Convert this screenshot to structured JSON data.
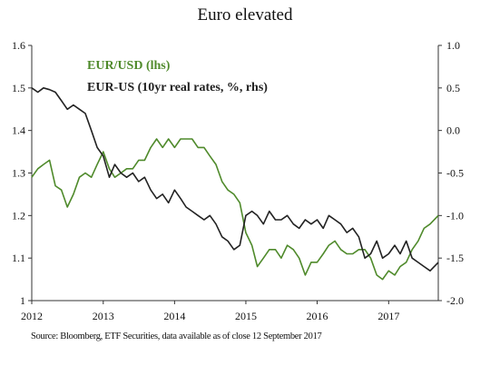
{
  "chart_data": {
    "type": "line",
    "title": "Euro elevated",
    "source": "Source: Bloomberg, ETF Securities, data available as of close 12 September 2017",
    "x_ticks": [
      "2012",
      "2013",
      "2014",
      "2015",
      "2016",
      "2017"
    ],
    "xlim": [
      "2012-01-01",
      "2017-09-12"
    ],
    "left_axis": {
      "ticks": [
        "1",
        "1.1",
        "1.2",
        "1.3",
        "1.4",
        "1.5",
        "1.6"
      ],
      "ylim": [
        1.0,
        1.6
      ]
    },
    "right_axis": {
      "ticks": [
        "-2.0",
        "-1.5",
        "-1.0",
        "-0.5",
        "0.0",
        "0.5",
        "1.0"
      ],
      "ylim": [
        -2.0,
        1.0
      ]
    },
    "legend": [
      {
        "label": "EUR/USD (lhs)",
        "color": "#4f8a2b"
      },
      {
        "label": "EUR-US (10yr real rates, %, rhs)",
        "color": "#222222"
      }
    ],
    "grid": false,
    "series": [
      {
        "name": "EUR/USD (lhs)",
        "axis": "left",
        "color": "#4f8a2b",
        "x": [
          "2012-01-01",
          "2012-02-01",
          "2012-03-01",
          "2012-04-01",
          "2012-05-01",
          "2012-06-01",
          "2012-07-01",
          "2012-08-01",
          "2012-09-01",
          "2012-10-01",
          "2012-11-01",
          "2012-12-01",
          "2013-01-01",
          "2013-02-01",
          "2013-03-01",
          "2013-04-01",
          "2013-05-01",
          "2013-06-01",
          "2013-07-01",
          "2013-08-01",
          "2013-09-01",
          "2013-10-01",
          "2013-11-01",
          "2013-12-01",
          "2014-01-01",
          "2014-02-01",
          "2014-03-01",
          "2014-04-01",
          "2014-05-01",
          "2014-06-01",
          "2014-07-01",
          "2014-08-01",
          "2014-09-01",
          "2014-10-01",
          "2014-11-01",
          "2014-12-01",
          "2015-01-01",
          "2015-02-01",
          "2015-03-01",
          "2015-04-01",
          "2015-05-01",
          "2015-06-01",
          "2015-07-01",
          "2015-08-01",
          "2015-09-01",
          "2015-10-01",
          "2015-11-01",
          "2015-12-01",
          "2016-01-01",
          "2016-02-01",
          "2016-03-01",
          "2016-04-01",
          "2016-05-01",
          "2016-06-01",
          "2016-07-01",
          "2016-08-01",
          "2016-09-01",
          "2016-10-01",
          "2016-11-01",
          "2016-12-01",
          "2017-01-01",
          "2017-02-01",
          "2017-03-01",
          "2017-04-01",
          "2017-05-01",
          "2017-06-01",
          "2017-07-01",
          "2017-08-01",
          "2017-09-12"
        ],
        "values": [
          1.29,
          1.31,
          1.32,
          1.33,
          1.27,
          1.26,
          1.22,
          1.25,
          1.29,
          1.3,
          1.29,
          1.32,
          1.35,
          1.31,
          1.29,
          1.3,
          1.31,
          1.31,
          1.33,
          1.33,
          1.36,
          1.38,
          1.36,
          1.38,
          1.36,
          1.38,
          1.38,
          1.38,
          1.36,
          1.36,
          1.34,
          1.32,
          1.28,
          1.26,
          1.25,
          1.23,
          1.16,
          1.13,
          1.08,
          1.1,
          1.12,
          1.12,
          1.1,
          1.13,
          1.12,
          1.1,
          1.06,
          1.09,
          1.09,
          1.11,
          1.13,
          1.14,
          1.12,
          1.11,
          1.11,
          1.12,
          1.12,
          1.1,
          1.06,
          1.05,
          1.07,
          1.06,
          1.08,
          1.09,
          1.12,
          1.14,
          1.17,
          1.18,
          1.2
        ]
      },
      {
        "name": "EUR-US (10yr real rates, %, rhs)",
        "axis": "right",
        "color": "#222222",
        "x": [
          "2012-01-01",
          "2012-02-01",
          "2012-03-01",
          "2012-04-01",
          "2012-05-01",
          "2012-06-01",
          "2012-07-01",
          "2012-08-01",
          "2012-09-01",
          "2012-10-01",
          "2012-11-01",
          "2012-12-01",
          "2013-01-01",
          "2013-02-01",
          "2013-03-01",
          "2013-04-01",
          "2013-05-01",
          "2013-06-01",
          "2013-07-01",
          "2013-08-01",
          "2013-09-01",
          "2013-10-01",
          "2013-11-01",
          "2013-12-01",
          "2014-01-01",
          "2014-02-01",
          "2014-03-01",
          "2014-04-01",
          "2014-05-01",
          "2014-06-01",
          "2014-07-01",
          "2014-08-01",
          "2014-09-01",
          "2014-10-01",
          "2014-11-01",
          "2014-12-01",
          "2015-01-01",
          "2015-02-01",
          "2015-03-01",
          "2015-04-01",
          "2015-05-01",
          "2015-06-01",
          "2015-07-01",
          "2015-08-01",
          "2015-09-01",
          "2015-10-01",
          "2015-11-01",
          "2015-12-01",
          "2016-01-01",
          "2016-02-01",
          "2016-03-01",
          "2016-04-01",
          "2016-05-01",
          "2016-06-01",
          "2016-07-01",
          "2016-08-01",
          "2016-09-01",
          "2016-10-01",
          "2016-11-01",
          "2016-12-01",
          "2017-01-01",
          "2017-02-01",
          "2017-03-01",
          "2017-04-01",
          "2017-05-01",
          "2017-06-01",
          "2017-07-01",
          "2017-08-01",
          "2017-09-12"
        ],
        "values": [
          0.5,
          0.45,
          0.5,
          0.48,
          0.45,
          0.35,
          0.25,
          0.3,
          0.25,
          0.2,
          0.0,
          -0.2,
          -0.3,
          -0.55,
          -0.4,
          -0.5,
          -0.55,
          -0.5,
          -0.6,
          -0.55,
          -0.7,
          -0.8,
          -0.75,
          -0.85,
          -0.7,
          -0.8,
          -0.9,
          -0.95,
          -1.0,
          -1.05,
          -1.0,
          -1.1,
          -1.25,
          -1.3,
          -1.4,
          -1.35,
          -1.0,
          -0.95,
          -1.0,
          -1.1,
          -0.95,
          -1.05,
          -1.05,
          -1.0,
          -1.1,
          -1.15,
          -1.05,
          -1.1,
          -1.05,
          -1.15,
          -1.0,
          -1.05,
          -1.1,
          -1.2,
          -1.15,
          -1.25,
          -1.5,
          -1.45,
          -1.3,
          -1.5,
          -1.45,
          -1.35,
          -1.45,
          -1.3,
          -1.5,
          -1.55,
          -1.6,
          -1.65,
          -1.55
        ]
      }
    ]
  }
}
